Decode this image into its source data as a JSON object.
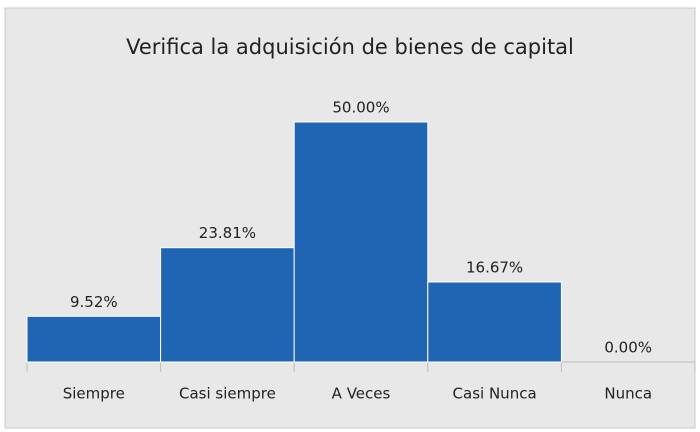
{
  "chart_data": {
    "type": "bar",
    "title": "Verifica la adquisición de bienes de capital",
    "categories": [
      "Siempre",
      "Casi siempre",
      "A Veces",
      "Casi Nunca",
      "Nunca"
    ],
    "values": [
      9.52,
      23.81,
      50,
      16.67,
      0
    ],
    "value_labels": [
      "9.52%",
      "23.81%",
      "50.00%",
      "16.67%",
      "0.00%"
    ],
    "color": "#1f65b3"
  }
}
